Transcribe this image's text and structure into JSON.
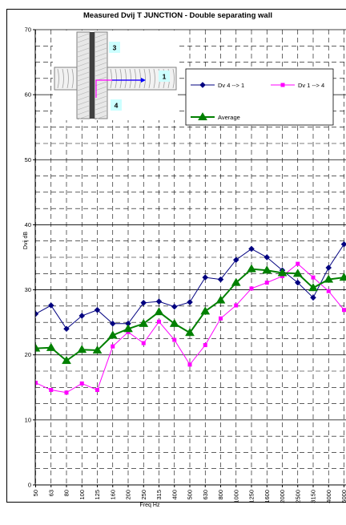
{
  "chart_data": {
    "type": "line",
    "title": "Measured Dvij T JUNCTION - Double separating wall",
    "xlabel": "Freq Hz",
    "ylabel": "Dvij dB",
    "ylim": [
      0,
      70
    ],
    "yticks": [
      0,
      10,
      20,
      30,
      40,
      50,
      60,
      70
    ],
    "grid": true,
    "legend_position": "top-right",
    "categories": [
      "50",
      "63",
      "80",
      "100",
      "125",
      "160",
      "200",
      "250",
      "315",
      "400",
      "500",
      "630",
      "800",
      "1000",
      "1250",
      "1600",
      "2000",
      "2500",
      "3150",
      "4000",
      "5000"
    ],
    "series": [
      {
        "name": "Dv 4 --> 1",
        "color": "#000080",
        "marker": "diamond",
        "values": [
          26.3,
          27.6,
          24.0,
          26.0,
          26.9,
          24.8,
          24.8,
          28.0,
          28.2,
          27.4,
          28.1,
          31.9,
          31.6,
          34.6,
          36.3,
          35.0,
          33.0,
          31.1,
          28.8,
          33.4,
          37.0
        ]
      },
      {
        "name": "Dv 1 --> 4",
        "color": "#ff00ff",
        "marker": "square",
        "values": [
          15.7,
          14.6,
          14.2,
          15.6,
          14.6,
          21.3,
          23.5,
          21.8,
          25.1,
          22.3,
          18.5,
          21.5,
          25.6,
          27.6,
          30.2,
          31.1,
          32.1,
          34.0,
          31.9,
          29.8,
          26.9
        ]
      },
      {
        "name": "Average",
        "color": "#008000",
        "marker": "triangle",
        "values": [
          21.0,
          21.1,
          19.1,
          20.8,
          20.7,
          23.0,
          24.0,
          24.8,
          26.6,
          24.8,
          23.4,
          26.7,
          28.4,
          31.1,
          33.2,
          33.0,
          32.6,
          32.5,
          30.3,
          31.6,
          31.9
        ]
      }
    ],
    "inset_labels": [
      "3",
      "1",
      "4"
    ]
  },
  "colors": {
    "plot_background": "#ffffff",
    "grid": "#000000",
    "inset_label_box": "#ccffff",
    "arrow": "#0000ff",
    "path": "#ff00ff"
  }
}
